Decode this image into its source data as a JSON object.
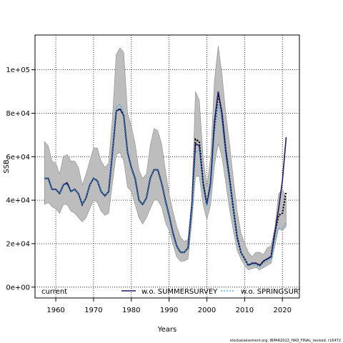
{
  "chart_data": {
    "type": "line",
    "title": "",
    "xlabel": "Years",
    "ylabel": "SSB",
    "xlim": [
      1954.5,
      2024.5
    ],
    "ylim": [
      -5000,
      116000
    ],
    "grid": true,
    "grid_style": "dotted",
    "xticks": [
      1960,
      1970,
      1980,
      1990,
      2000,
      2010,
      2020
    ],
    "yticks": [
      {
        "value": 0,
        "label": "0e+00"
      },
      {
        "value": 20000,
        "label": "2e+04"
      },
      {
        "value": 40000,
        "label": "4e+04"
      },
      {
        "value": 60000,
        "label": "6e+04"
      },
      {
        "value": 80000,
        "label": "8e+04"
      },
      {
        "value": 100000,
        "label": "1e+05"
      }
    ],
    "x": [
      1957,
      1958,
      1959,
      1960,
      1961,
      1962,
      1963,
      1964,
      1965,
      1966,
      1967,
      1968,
      1969,
      1970,
      1971,
      1972,
      1973,
      1974,
      1975,
      1976,
      1977,
      1978,
      1979,
      1980,
      1981,
      1982,
      1983,
      1984,
      1985,
      1986,
      1987,
      1988,
      1989,
      1990,
      1991,
      1992,
      1993,
      1994,
      1995,
      1996,
      1997,
      1998,
      1999,
      2000,
      2001,
      2002,
      2003,
      2004,
      2005,
      2006,
      2007,
      2008,
      2009,
      2010,
      2011,
      2012,
      2013,
      2014,
      2015,
      2016,
      2017,
      2018,
      2019,
      2020,
      2021
    ],
    "band": {
      "upper": [
        67000,
        65000,
        58000,
        57000,
        52000,
        60000,
        61000,
        58000,
        58000,
        55000,
        47000,
        52000,
        58000,
        64000,
        64000,
        58000,
        55000,
        57000,
        78000,
        107000,
        110000,
        108000,
        80000,
        74000,
        66000,
        54000,
        50000,
        52000,
        65000,
        73000,
        72000,
        66000,
        54000,
        43000,
        35000,
        28000,
        23000,
        21000,
        22000,
        40000,
        90000,
        86000,
        60000,
        46000,
        60000,
        95000,
        111000,
        98000,
        80000,
        66000,
        50000,
        35000,
        25000,
        20000,
        16000,
        14000,
        16000,
        16000,
        15000,
        18000,
        19000,
        27000,
        43000,
        45000,
        41000
      ],
      "lower": [
        38000,
        39000,
        37000,
        36000,
        34000,
        38000,
        38000,
        35000,
        34000,
        32000,
        30000,
        32000,
        36000,
        40000,
        39000,
        35000,
        33000,
        34000,
        48000,
        61000,
        62000,
        58000,
        46000,
        44000,
        38000,
        32000,
        29000,
        32000,
        36000,
        40000,
        40000,
        37000,
        30000,
        26000,
        20000,
        14000,
        12000,
        12000,
        13000,
        30000,
        51000,
        51000,
        38000,
        31000,
        38000,
        56000,
        66000,
        60000,
        48000,
        36000,
        26000,
        17000,
        13000,
        10000,
        8000,
        8500,
        9000,
        8000,
        9000,
        10000,
        11000,
        19000,
        27000,
        26000,
        28000
      ]
    },
    "series": [
      {
        "name": "current",
        "color": "#000000",
        "dash": "2,2",
        "values": [
          50000,
          50000,
          45000,
          45000,
          43000,
          47000,
          48000,
          44000,
          45000,
          43000,
          38000,
          41000,
          47000,
          50000,
          49000,
          44000,
          42000,
          44000,
          62000,
          81000,
          82000,
          79000,
          62000,
          55000,
          50000,
          40000,
          38000,
          41000,
          50000,
          54000,
          54000,
          48000,
          40000,
          33000,
          25000,
          19000,
          16000,
          16000,
          18000,
          37000,
          68000,
          67000,
          48000,
          38000,
          48000,
          75000,
          89000,
          80000,
          63000,
          50000,
          36000,
          23000,
          16000,
          13000,
          10000,
          11000,
          11000,
          10000,
          12000,
          13000,
          14000,
          25000,
          33000,
          34000,
          44000
        ]
      },
      {
        "name": "w.o. SUMMERSURVEY",
        "color": "#1f1a66",
        "dash": "",
        "values": [
          50000,
          50000,
          45000,
          45000,
          43000,
          47000,
          48000,
          44000,
          45000,
          43000,
          38000,
          41000,
          47000,
          50000,
          49000,
          44000,
          42000,
          44000,
          62000,
          81000,
          82000,
          79000,
          62000,
          55000,
          50000,
          40000,
          38000,
          41000,
          50000,
          54000,
          54000,
          48000,
          40000,
          33000,
          25000,
          19000,
          16000,
          16000,
          18000,
          37000,
          66000,
          65000,
          48000,
          38000,
          48000,
          76000,
          90000,
          80000,
          63000,
          50000,
          36000,
          23000,
          16000,
          13000,
          10000,
          11000,
          11000,
          10000,
          12000,
          13000,
          14000,
          25000,
          36000,
          49000,
          69000
        ]
      },
      {
        "name": "w.o. SPRINGSURVEY",
        "color": "#29a8e0",
        "dash": "2,2",
        "values": [
          50000,
          50000,
          45000,
          45000,
          43000,
          47000,
          47000,
          44000,
          45000,
          43000,
          38000,
          41000,
          47000,
          50000,
          49000,
          44000,
          42000,
          44000,
          62000,
          83000,
          84000,
          80000,
          62000,
          55000,
          50000,
          40000,
          38000,
          41000,
          50000,
          54000,
          54000,
          48000,
          40000,
          33000,
          24000,
          19000,
          16000,
          16000,
          18000,
          36000,
          62000,
          63000,
          46000,
          37000,
          46000,
          70000,
          84000,
          76000,
          60000,
          48000,
          35000,
          22000,
          16000,
          13000,
          10000,
          10500,
          10000,
          9500,
          11000,
          12000,
          13000,
          22000,
          27000,
          27000,
          30000
        ]
      }
    ],
    "legend_position": "bottom",
    "footer": "stockassessment.org, IBPAR2022_HAD_FINAL_revised, r16472"
  }
}
